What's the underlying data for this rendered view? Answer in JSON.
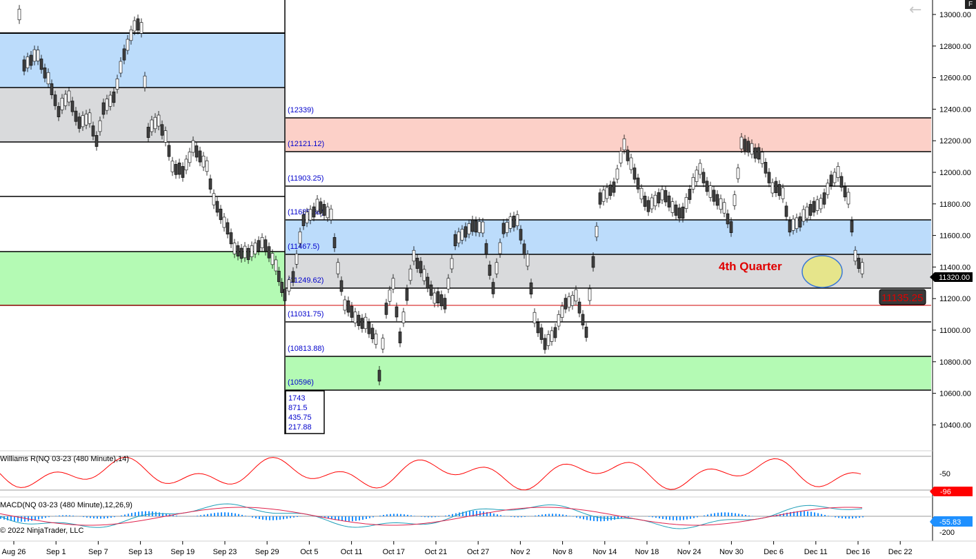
{
  "app": {
    "corner_button": "F",
    "back_arrow": "←"
  },
  "price_axis": {
    "labels": [
      "13000.00",
      "12800.00",
      "12600.00",
      "12400.00",
      "12200.00",
      "12000.00",
      "11800.00",
      "11600.00",
      "11400.00",
      "11200.00",
      "11000.00",
      "10800.00",
      "10600.00",
      "10400.00"
    ],
    "current_price": "11320.00",
    "line_price_tag": "11135.25"
  },
  "date_axis": {
    "labels": [
      "Aug 26",
      "Sep 1",
      "Sep 7",
      "Sep 13",
      "Sep 19",
      "Sep 23",
      "Sep 29",
      "Oct 5",
      "Oct 11",
      "Oct 17",
      "Oct 21",
      "Oct 27",
      "Nov 2",
      "Nov 8",
      "Nov 14",
      "Nov 18",
      "Nov 24",
      "Nov 30",
      "Dec 6",
      "Dec 11",
      "Dec 16",
      "Dec 22"
    ]
  },
  "levels": [
    "(12339)",
    "(12121.12)",
    "(11903.25)",
    "(11685.38)",
    "(11467.5)",
    "(11249.62)",
    "(11031.75)",
    "(10813.88)",
    "(10596)"
  ],
  "range_box": [
    "1743",
    "871.5",
    "435.75",
    "217.88"
  ],
  "annotation": {
    "text": "4th Quarter",
    "color": "#e00000"
  },
  "indicators": {
    "williams": {
      "title": "Williams R(NQ 03-23 (480 Minute),14)",
      "axis_label": "-50",
      "value": "-96",
      "color": "#ff0000"
    },
    "macd": {
      "title": "MACD(NQ 03-23 (480 Minute),12,26,9)",
      "axis_label": "-200",
      "value": "-55.83",
      "color": "#1e90ff"
    }
  },
  "copyright": "© 2022 NinjaTrader, LLC",
  "colors": {
    "blue_zone": "#bcdcfb",
    "gray_zone": "#d9dadc",
    "green_zone": "#b4fab4",
    "red_zone": "#fcd0c8",
    "bull": "#ffffff",
    "bear": "#404040"
  }
}
